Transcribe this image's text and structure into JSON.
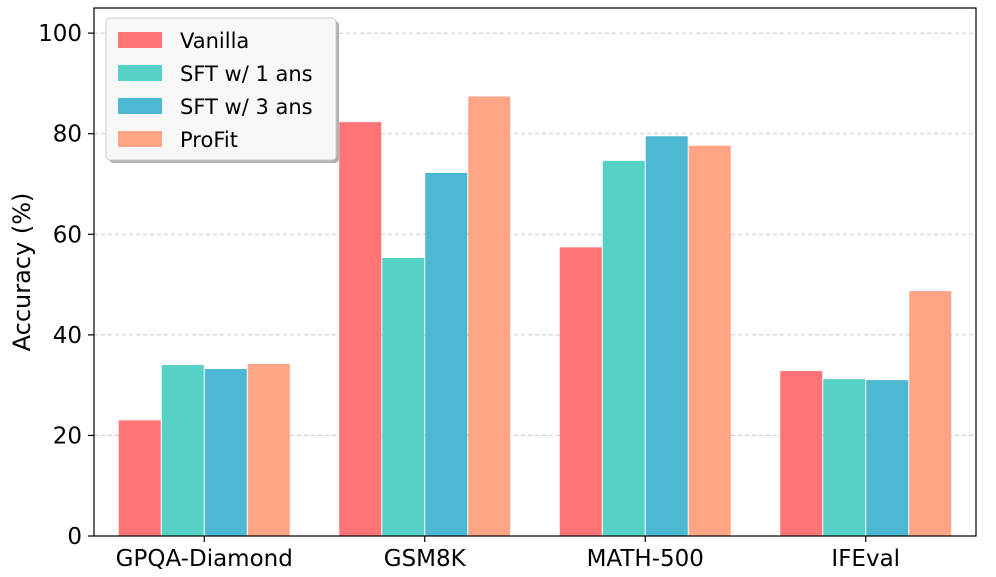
{
  "chart_data": {
    "type": "bar",
    "title": "",
    "xlabel": "",
    "ylabel": "Accuracy (%)",
    "ylim": [
      0,
      105
    ],
    "yticks": [
      0,
      20,
      40,
      60,
      80,
      100
    ],
    "grid": "horizontal dashed",
    "legend_position": "top-left",
    "categories": [
      "GPQA-Diamond",
      "GSM8K",
      "MATH-500",
      "IFEval"
    ],
    "series": [
      {
        "name": "Vanilla",
        "color": "#FF7575",
        "values": [
          23.0,
          82.3,
          57.4,
          32.8
        ]
      },
      {
        "name": "SFT w/ 1 ans",
        "color": "#56D1C6",
        "values": [
          34.0,
          55.3,
          74.6,
          31.2
        ]
      },
      {
        "name": "SFT w/ 3 ans",
        "color": "#4DB8D1",
        "values": [
          33.2,
          72.2,
          79.5,
          31.0
        ]
      },
      {
        "name": "ProFit",
        "color": "#FFA484",
        "values": [
          34.2,
          87.4,
          77.6,
          48.7
        ]
      }
    ]
  }
}
